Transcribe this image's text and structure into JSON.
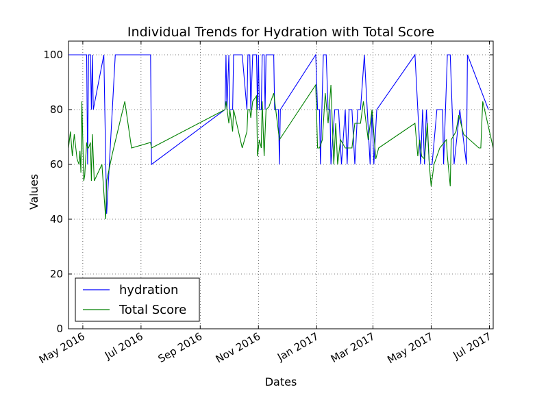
{
  "chart_data": {
    "type": "line",
    "title": "Individual Trends for Hydration with Total Score",
    "xlabel": "Dates",
    "ylabel": "Values",
    "ylim": [
      0,
      105
    ],
    "xlim": [
      "2016-04-16",
      "2017-07-05"
    ],
    "yticks": [
      0,
      20,
      40,
      60,
      80,
      100
    ],
    "xticks": [
      {
        "date": "2016-05-01",
        "label": "May 2016"
      },
      {
        "date": "2016-07-01",
        "label": "Jul 2016"
      },
      {
        "date": "2016-09-01",
        "label": "Sep 2016"
      },
      {
        "date": "2016-11-01",
        "label": "Nov 2016"
      },
      {
        "date": "2017-01-01",
        "label": "Jan 2017"
      },
      {
        "date": "2017-03-01",
        "label": "Mar 2017"
      },
      {
        "date": "2017-05-01",
        "label": "May 2017"
      },
      {
        "date": "2017-07-01",
        "label": "Jul 2017"
      }
    ],
    "grid": true,
    "legend_position": "lower-left",
    "series": [
      {
        "name": "hydration",
        "color": "#0000ff",
        "points": [
          [
            "2016-04-16",
            100
          ],
          [
            "2016-05-01",
            100
          ],
          [
            "2016-05-05",
            100
          ],
          [
            "2016-05-06",
            60
          ],
          [
            "2016-05-07",
            100
          ],
          [
            "2016-05-09",
            100
          ],
          [
            "2016-05-10",
            80
          ],
          [
            "2016-05-11",
            100
          ],
          [
            "2016-05-12",
            80
          ],
          [
            "2016-05-23",
            100
          ],
          [
            "2016-05-26",
            42
          ],
          [
            "2016-06-04",
            100
          ],
          [
            "2016-06-16",
            100
          ],
          [
            "2016-07-11",
            100
          ],
          [
            "2016-07-12",
            60
          ],
          [
            "2016-09-27",
            80
          ],
          [
            "2016-09-28",
            100
          ],
          [
            "2016-09-29",
            80
          ],
          [
            "2016-10-01",
            100
          ],
          [
            "2016-10-02",
            80
          ],
          [
            "2016-10-05",
            80
          ],
          [
            "2016-10-06",
            100
          ],
          [
            "2016-10-15",
            100
          ],
          [
            "2016-10-20",
            80
          ],
          [
            "2016-10-21",
            100
          ],
          [
            "2016-10-23",
            100
          ],
          [
            "2016-10-24",
            80
          ],
          [
            "2016-10-26",
            100
          ],
          [
            "2016-10-30",
            100
          ],
          [
            "2016-10-31",
            80
          ],
          [
            "2016-11-01",
            100
          ],
          [
            "2016-11-02",
            80
          ],
          [
            "2016-11-04",
            80
          ],
          [
            "2016-11-05",
            100
          ],
          [
            "2016-11-07",
            100
          ],
          [
            "2016-11-08",
            80
          ],
          [
            "2016-11-09",
            100
          ],
          [
            "2016-11-12",
            100
          ],
          [
            "2016-11-17",
            100
          ],
          [
            "2016-11-18",
            80
          ],
          [
            "2016-11-22",
            80
          ],
          [
            "2016-11-23",
            60
          ],
          [
            "2016-11-24",
            80
          ],
          [
            "2016-12-31",
            100
          ],
          [
            "2017-01-02",
            80
          ],
          [
            "2017-01-04",
            80
          ],
          [
            "2017-01-05",
            60
          ],
          [
            "2017-01-08",
            100
          ],
          [
            "2017-01-11",
            100
          ],
          [
            "2017-01-13",
            80
          ],
          [
            "2017-01-15",
            80
          ],
          [
            "2017-01-16",
            60
          ],
          [
            "2017-01-20",
            80
          ],
          [
            "2017-01-24",
            80
          ],
          [
            "2017-01-27",
            60
          ],
          [
            "2017-01-31",
            80
          ],
          [
            "2017-02-02",
            60
          ],
          [
            "2017-02-04",
            80
          ],
          [
            "2017-02-07",
            80
          ],
          [
            "2017-02-10",
            60
          ],
          [
            "2017-02-13",
            80
          ],
          [
            "2017-02-16",
            80
          ],
          [
            "2017-02-20",
            100
          ],
          [
            "2017-02-26",
            60
          ],
          [
            "2017-02-28",
            80
          ],
          [
            "2017-03-02",
            60
          ],
          [
            "2017-03-05",
            80
          ],
          [
            "2017-04-14",
            100
          ],
          [
            "2017-04-20",
            60
          ],
          [
            "2017-04-22",
            80
          ],
          [
            "2017-04-24",
            60
          ],
          [
            "2017-04-26",
            80
          ],
          [
            "2017-04-29",
            60
          ],
          [
            "2017-05-02",
            60
          ],
          [
            "2017-05-07",
            80
          ],
          [
            "2017-05-13",
            80
          ],
          [
            "2017-05-14",
            60
          ],
          [
            "2017-05-18",
            100
          ],
          [
            "2017-05-21",
            100
          ],
          [
            "2017-05-25",
            60
          ],
          [
            "2017-05-31",
            80
          ],
          [
            "2017-06-07",
            60
          ],
          [
            "2017-06-08",
            100
          ],
          [
            "2017-06-30",
            80
          ]
        ]
      },
      {
        "name": "Total Score",
        "color": "#008000",
        "points": [
          [
            "2016-04-16",
            66
          ],
          [
            "2016-04-18",
            72
          ],
          [
            "2016-04-20",
            63
          ],
          [
            "2016-04-22",
            71
          ],
          [
            "2016-04-25",
            62
          ],
          [
            "2016-04-27",
            60
          ],
          [
            "2016-04-28",
            65
          ],
          [
            "2016-04-29",
            57
          ],
          [
            "2016-04-30",
            83
          ],
          [
            "2016-05-02",
            54
          ],
          [
            "2016-05-03",
            56
          ],
          [
            "2016-05-05",
            68
          ],
          [
            "2016-05-06",
            66
          ],
          [
            "2016-05-07",
            66
          ],
          [
            "2016-05-09",
            68
          ],
          [
            "2016-05-10",
            54
          ],
          [
            "2016-05-11",
            71
          ],
          [
            "2016-05-13",
            54
          ],
          [
            "2016-05-17",
            57
          ],
          [
            "2016-05-21",
            60
          ],
          [
            "2016-05-25",
            40
          ],
          [
            "2016-05-26",
            54
          ],
          [
            "2016-06-01",
            64
          ],
          [
            "2016-06-14",
            83
          ],
          [
            "2016-06-21",
            66
          ],
          [
            "2016-07-11",
            68
          ],
          [
            "2016-07-12",
            66
          ],
          [
            "2016-09-27",
            80
          ],
          [
            "2016-09-28",
            83
          ],
          [
            "2016-10-01",
            75
          ],
          [
            "2016-10-02",
            80
          ],
          [
            "2016-10-05",
            72
          ],
          [
            "2016-10-06",
            80
          ],
          [
            "2016-10-15",
            66
          ],
          [
            "2016-10-20",
            72
          ],
          [
            "2016-10-21",
            80
          ],
          [
            "2016-10-23",
            80
          ],
          [
            "2016-10-24",
            77
          ],
          [
            "2016-10-26",
            83
          ],
          [
            "2016-10-30",
            85
          ],
          [
            "2016-10-31",
            63
          ],
          [
            "2016-11-01",
            66
          ],
          [
            "2016-11-02",
            69
          ],
          [
            "2016-11-04",
            66
          ],
          [
            "2016-11-05",
            83
          ],
          [
            "2016-11-07",
            63
          ],
          [
            "2016-11-09",
            80
          ],
          [
            "2016-11-12",
            81
          ],
          [
            "2016-11-17",
            86
          ],
          [
            "2016-11-23",
            69
          ],
          [
            "2016-12-31",
            89
          ],
          [
            "2017-01-02",
            66
          ],
          [
            "2017-01-04",
            66
          ],
          [
            "2017-01-07",
            69
          ],
          [
            "2017-01-10",
            86
          ],
          [
            "2017-01-13",
            75
          ],
          [
            "2017-01-16",
            89
          ],
          [
            "2017-01-19",
            60
          ],
          [
            "2017-01-21",
            75
          ],
          [
            "2017-01-23",
            60
          ],
          [
            "2017-01-26",
            69
          ],
          [
            "2017-01-31",
            66
          ],
          [
            "2017-02-02",
            66
          ],
          [
            "2017-02-07",
            66
          ],
          [
            "2017-02-10",
            75
          ],
          [
            "2017-02-16",
            75
          ],
          [
            "2017-02-19",
            83
          ],
          [
            "2017-02-24",
            69
          ],
          [
            "2017-02-28",
            80
          ],
          [
            "2017-03-04",
            62
          ],
          [
            "2017-03-07",
            66
          ],
          [
            "2017-04-14",
            75
          ],
          [
            "2017-04-17",
            63
          ],
          [
            "2017-04-19",
            69
          ],
          [
            "2017-04-21",
            63
          ],
          [
            "2017-04-24",
            62
          ],
          [
            "2017-04-27",
            75
          ],
          [
            "2017-04-29",
            60
          ],
          [
            "2017-05-01",
            52
          ],
          [
            "2017-05-04",
            60
          ],
          [
            "2017-05-10",
            66
          ],
          [
            "2017-05-17",
            69
          ],
          [
            "2017-05-18",
            63
          ],
          [
            "2017-05-21",
            52
          ],
          [
            "2017-05-22",
            69
          ],
          [
            "2017-05-27",
            72
          ],
          [
            "2017-05-30",
            78
          ],
          [
            "2017-06-04",
            71
          ],
          [
            "2017-06-20",
            66
          ],
          [
            "2017-06-22",
            66
          ],
          [
            "2017-06-24",
            83
          ],
          [
            "2017-07-05",
            66
          ]
        ]
      }
    ]
  }
}
